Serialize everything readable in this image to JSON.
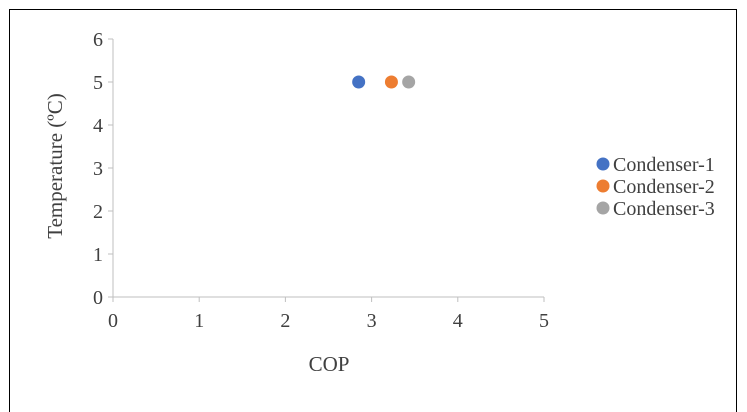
{
  "chart_data": {
    "type": "scatter",
    "title": "",
    "xlabel": "COP",
    "ylabel": "Temperature (ºC)",
    "xlim": [
      0,
      5
    ],
    "ylim": [
      0,
      6
    ],
    "xticks": [
      0,
      1,
      2,
      3,
      4,
      5
    ],
    "yticks": [
      0,
      1,
      2,
      3,
      4,
      5,
      6
    ],
    "grid": false,
    "legend_position": "right",
    "series": [
      {
        "name": "Condenser-1",
        "color": "#4472C4",
        "x": [
          2.85
        ],
        "y": [
          5
        ]
      },
      {
        "name": "Condenser-2",
        "color": "#ED7D31",
        "x": [
          3.23
        ],
        "y": [
          5
        ]
      },
      {
        "name": "Condenser-3",
        "color": "#A5A5A5",
        "x": [
          3.43
        ],
        "y": [
          5
        ]
      }
    ]
  }
}
